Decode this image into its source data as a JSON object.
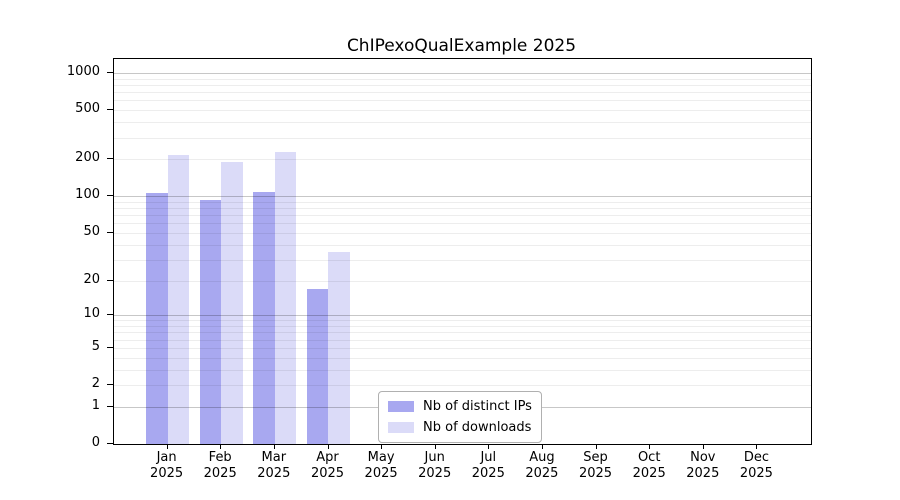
{
  "title": "ChIPexoQualExample 2025",
  "colors": {
    "distinct_ips_bar": "#a8a8f0",
    "downloads_bar": "#dbdbf8",
    "spine": "#000000",
    "major_gridline": "rgba(0,0,0,0.22)",
    "minor_gridline": "rgba(0,0,0,0.07)",
    "legend_border": "#b0b0b0",
    "background": "#ffffff"
  },
  "chart_data": {
    "type": "bar",
    "title": "ChIPexoQualExample 2025",
    "categories": [
      "Jan",
      "Feb",
      "Mar",
      "Apr",
      "May",
      "Jun",
      "Jul",
      "Aug",
      "Sep",
      "Oct",
      "Nov",
      "Dec"
    ],
    "x_tick_year": "2025",
    "series": [
      {
        "name": "Nb of distinct IPs",
        "color": "#a8a8f0",
        "values": [
          107,
          93,
          109,
          17,
          0,
          0,
          0,
          0,
          0,
          0,
          0,
          0
        ]
      },
      {
        "name": "Nb of downloads",
        "color": "#dbdbf8",
        "values": [
          215,
          189,
          231,
          35,
          0,
          0,
          0,
          0,
          0,
          0,
          0,
          0
        ]
      }
    ],
    "y_axis": {
      "scale": "log1p",
      "tick_values": [
        0,
        1,
        2,
        5,
        10,
        20,
        50,
        100,
        200,
        500,
        1000
      ],
      "tick_labels": [
        "0",
        "1",
        "2",
        "5",
        "10",
        "20",
        "50",
        "100",
        "200",
        "500",
        "1000"
      ],
      "max_tick": 1000,
      "major_gridline_values": [
        1,
        10,
        100,
        1000
      ],
      "minor_gridline_values": [
        2,
        3,
        4,
        5,
        6,
        7,
        8,
        9,
        20,
        30,
        40,
        50,
        60,
        70,
        80,
        90,
        200,
        300,
        400,
        500,
        600,
        700,
        800,
        900
      ]
    },
    "xlabel": "",
    "ylabel": "",
    "grid": true,
    "legend_position": "bottom-center"
  }
}
